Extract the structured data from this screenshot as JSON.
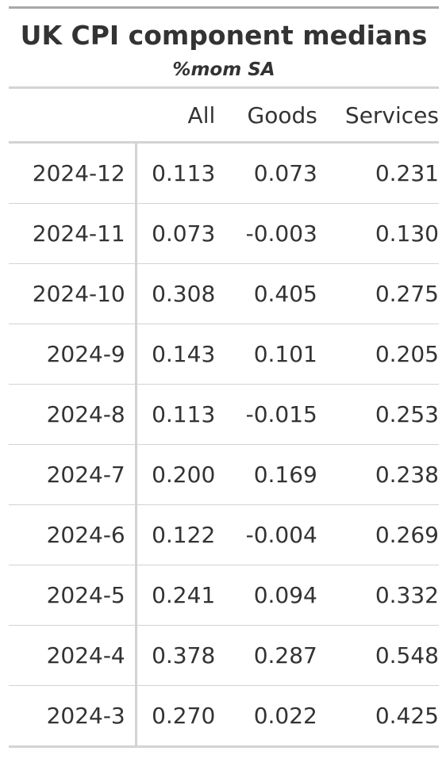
{
  "title": "UK CPI component medians",
  "subtitle": "%mom SA",
  "columns": {
    "stub": "",
    "all": "All",
    "goods": "Goods",
    "services": "Services"
  },
  "rows": [
    {
      "date": "2024-12",
      "all": "0.113",
      "goods": "0.073",
      "services": "0.231"
    },
    {
      "date": "2024-11",
      "all": "0.073",
      "goods": "-0.003",
      "services": "0.130"
    },
    {
      "date": "2024-10",
      "all": "0.308",
      "goods": "0.405",
      "services": "0.275"
    },
    {
      "date": "2024-9",
      "all": "0.143",
      "goods": "0.101",
      "services": "0.205"
    },
    {
      "date": "2024-8",
      "all": "0.113",
      "goods": "-0.015",
      "services": "0.253"
    },
    {
      "date": "2024-7",
      "all": "0.200",
      "goods": "0.169",
      "services": "0.238"
    },
    {
      "date": "2024-6",
      "all": "0.122",
      "goods": "-0.004",
      "services": "0.269"
    },
    {
      "date": "2024-5",
      "all": "0.241",
      "goods": "0.094",
      "services": "0.332"
    },
    {
      "date": "2024-4",
      "all": "0.378",
      "goods": "0.287",
      "services": "0.548"
    },
    {
      "date": "2024-3",
      "all": "0.270",
      "goods": "0.022",
      "services": "0.425"
    }
  ],
  "chart_data": {
    "type": "table",
    "title": "UK CPI component medians",
    "subtitle": "%mom SA",
    "columns": [
      "All",
      "Goods",
      "Services"
    ],
    "categories": [
      "2024-12",
      "2024-11",
      "2024-10",
      "2024-9",
      "2024-8",
      "2024-7",
      "2024-6",
      "2024-5",
      "2024-4",
      "2024-3"
    ],
    "series": [
      {
        "name": "All",
        "values": [
          0.113,
          0.073,
          0.308,
          0.143,
          0.113,
          0.2,
          0.122,
          0.241,
          0.378,
          0.27
        ]
      },
      {
        "name": "Goods",
        "values": [
          0.073,
          -0.003,
          0.405,
          0.101,
          -0.015,
          0.169,
          -0.004,
          0.094,
          0.287,
          0.022
        ]
      },
      {
        "name": "Services",
        "values": [
          0.231,
          0.13,
          0.275,
          0.205,
          0.253,
          0.238,
          0.269,
          0.332,
          0.548,
          0.425
        ]
      }
    ]
  },
  "colors": {
    "text": "#333333",
    "rule_dark": "#a8a8a8",
    "rule_light": "#d3d3d3"
  }
}
